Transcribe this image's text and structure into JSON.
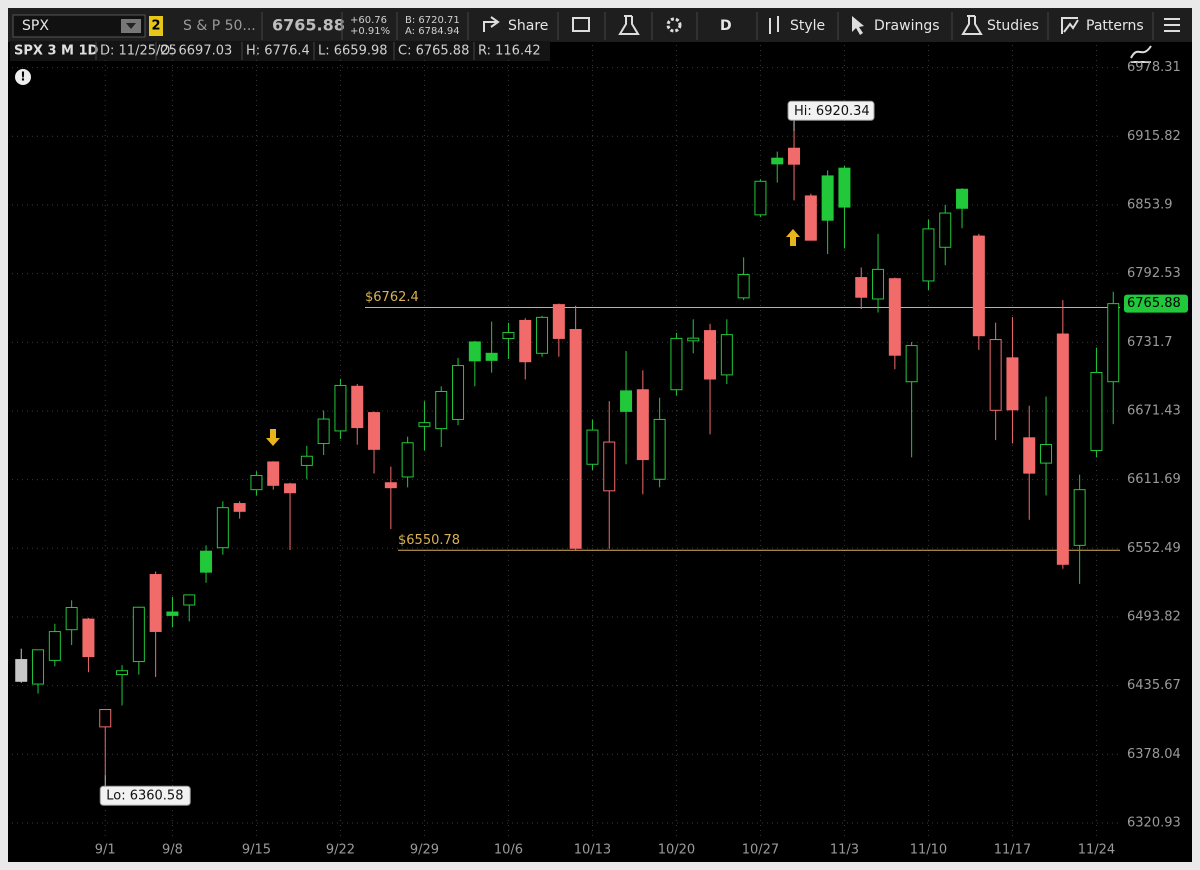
{
  "toolbar": {
    "symbol": "SPX",
    "link_group": "2",
    "description": "S & P 50...",
    "last": "6765.88",
    "change": "+60.76",
    "change_pct": "+0.91%",
    "bid": "B: 6720.71",
    "ask": "A: 6784.94",
    "buttons": [
      "Share",
      "D",
      "Style",
      "Drawings",
      "Studies",
      "Patterns"
    ]
  },
  "info_bar": {
    "title": "SPX 3 M 1D",
    "fields": [
      "D: 11/25/25",
      "O: 6697.03",
      "H: 6776.4",
      "L: 6659.98",
      "C: 6765.88",
      "R: 116.42"
    ]
  },
  "chart_data": {
    "type": "candlestick",
    "categories": [
      null,
      null,
      null,
      null,
      null,
      "9/1",
      null,
      null,
      null,
      "9/8",
      null,
      null,
      null,
      null,
      "9/15",
      null,
      null,
      null,
      null,
      "9/22",
      null,
      null,
      null,
      null,
      "9/29",
      null,
      null,
      null,
      null,
      "10/6",
      null,
      null,
      null,
      null,
      "10/13",
      null,
      null,
      null,
      null,
      "10/20",
      null,
      null,
      null,
      null,
      "10/27",
      null,
      null,
      null,
      null,
      "11/3",
      null,
      null,
      null,
      null,
      "11/10",
      null,
      null,
      null,
      null,
      "11/17",
      null,
      null,
      null,
      null,
      "11/24",
      null
    ],
    "open": [
      6457.67,
      6437,
      6457,
      6483,
      6492,
      6401,
      6445,
      6456,
      6530,
      6498,
      6504,
      6550,
      6553,
      6591,
      6603,
      6627,
      6608,
      6624,
      6643,
      6654,
      6693,
      6670,
      6609,
      6614,
      6658,
      6656,
      6664,
      6732,
      6722,
      6735,
      6751,
      6722,
      6765,
      6743,
      6625,
      6602,
      6689,
      6690,
      6612,
      6690,
      6733,
      6742,
      6703,
      6771,
      6845,
      6896,
      6905,
      6862,
      6880,
      6887,
      6789,
      6770,
      6788,
      6697,
      6786,
      6816,
      6868,
      6826,
      6672,
      6718,
      6648,
      6626,
      6739,
      6555,
      6637,
      6697.03
    ],
    "high": [
      6466.89,
      6466,
      6488,
      6508,
      6493,
      6416,
      6453,
      6502.6,
      6532.6,
      6511,
      6512.7,
      6555,
      6593,
      6593,
      6619,
      6627.7,
      6609,
      6641,
      6671.8,
      6699.5,
      6695,
      6671,
      6623,
      6649,
      6680,
      6693,
      6718,
      6733,
      6750,
      6749,
      6753,
      6755,
      6766,
      6764,
      6664,
      6680,
      6724,
      6707,
      6683,
      6740,
      6752,
      6748,
      6752,
      6807,
      6877,
      6902,
      6920.34,
      6864,
      6885,
      6889,
      6798,
      6828,
      6789,
      6732,
      6841,
      6854,
      6869,
      6828,
      6749,
      6754,
      6676,
      6684,
      6769,
      6616,
      6727,
      6776.4
    ],
    "low": [
      6438.06,
      6429,
      6452,
      6470,
      6447,
      6360.58,
      6419,
      6445,
      6443,
      6485,
      6490,
      6523,
      6547,
      6578,
      6598,
      6603,
      6551,
      6612,
      6633,
      6647,
      6642,
      6617,
      6569,
      6605,
      6637,
      6640,
      6659,
      6693,
      6705,
      6717,
      6699,
      6719,
      6719,
      6550.78,
      6620,
      6552,
      6625,
      6599,
      6605,
      6685,
      6722,
      6651,
      6695,
      6769,
      6843,
      6874,
      6858,
      6822,
      6810,
      6815,
      6761,
      6758,
      6708,
      6631,
      6778,
      6800,
      6833,
      6725,
      6646,
      6643,
      6577,
      6598,
      6535,
      6522,
      6631,
      6659.98
    ],
    "close": [
      6439.32,
      6465.94,
      6481.4,
      6501.86,
      6460.26,
      6415.54,
      6448.26,
      6502.08,
      6481.5,
      6495.15,
      6512.61,
      6532.04,
      6587.47,
      6584.29,
      6615.28,
      6606.76,
      6600.35,
      6631.96,
      6664.36,
      6693.75,
      6656.92,
      6637.97,
      6604.72,
      6643.7,
      6661.21,
      6688.46,
      6711.2,
      6715.35,
      6715.79,
      6740.28,
      6714.59,
      6753.72,
      6735.11,
      6552.51,
      6654.72,
      6644.31,
      6671.06,
      6629.07,
      6664.01,
      6735.13,
      6735.35,
      6699.4,
      6738.44,
      6791.69,
      6875.16,
      6890.89,
      6890.59,
      6822.34,
      6840.2,
      6851.97,
      6771.55,
      6796.29,
      6720.32,
      6728.8,
      6832.43,
      6846.61,
      6850.92,
      6737.49,
      6734.11,
      6672.41,
      6617.32,
      6642.16,
      6538.76,
      6602.99,
      6705.12,
      6765.88
    ],
    "up_color": "#21c83a",
    "down_color": "#f26b6b",
    "neutral_color": "#c8c8c8",
    "ylim": [
      6308.5,
      6999
    ],
    "log_scale": true,
    "grid": true,
    "yticks": [
      6320.93,
      6378.04,
      6435.67,
      6493.82,
      6552.49,
      6611.69,
      6671.43,
      6731.7,
      6792.53,
      6853.9,
      6915.82,
      6978.31
    ],
    "hi_label": "Hi: 6920.34",
    "lo_label": "Lo: 6360.58",
    "price_lines": [
      {
        "value": 6762.4,
        "label": "$6762.4",
        "color": "#d8b055"
      },
      {
        "value": 6550.78,
        "label": "$6550.78",
        "color": "#d8b055"
      }
    ]
  }
}
